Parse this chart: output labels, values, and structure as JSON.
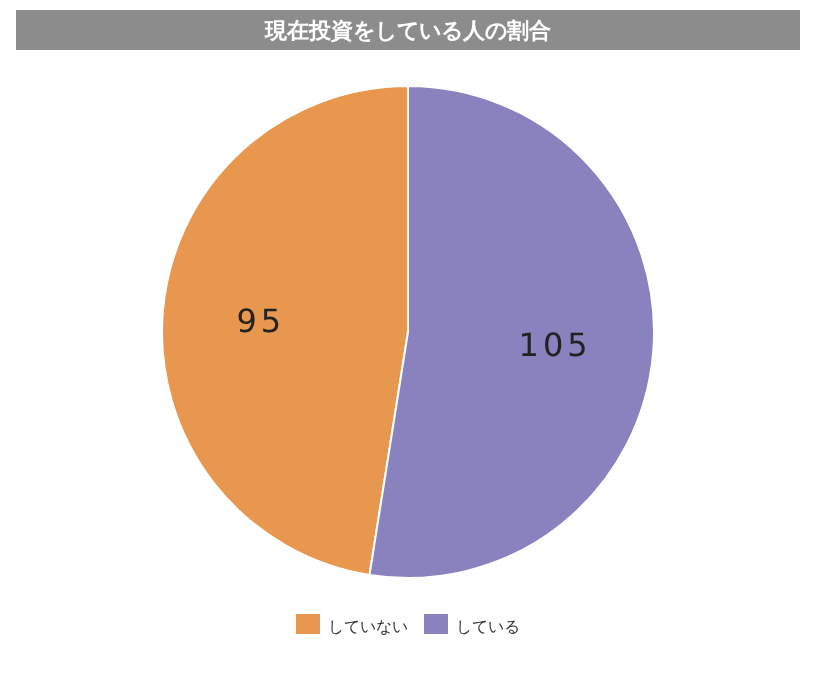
{
  "chart_data": {
    "type": "pie",
    "title": "現在投資をしている人の割合",
    "categories": [
      "していない",
      "している"
    ],
    "values": [
      95,
      105
    ],
    "colors": [
      "#e8984e",
      "#8a82be"
    ],
    "data_labels": true,
    "legend": "bottom"
  }
}
